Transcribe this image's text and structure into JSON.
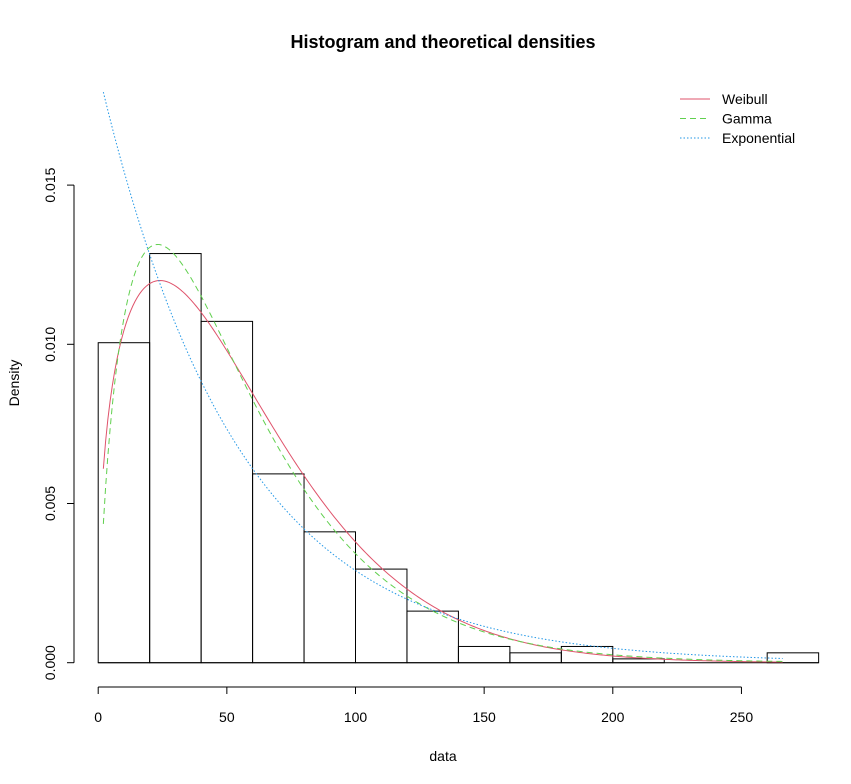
{
  "chart_data": {
    "type": "histogram",
    "title": "Histogram and theoretical densities",
    "xlabel": "data",
    "ylabel": "Density",
    "xlim": [
      0,
      275
    ],
    "ylim": [
      0,
      0.018
    ],
    "x_ticks": [
      {
        "value": 0,
        "label": "0"
      },
      {
        "value": 50,
        "label": "50"
      },
      {
        "value": 100,
        "label": "100"
      },
      {
        "value": 150,
        "label": "150"
      },
      {
        "value": 200,
        "label": "200"
      },
      {
        "value": 250,
        "label": "250"
      }
    ],
    "y_ticks": [
      {
        "value": 0,
        "label": "0.000"
      },
      {
        "value": 0.005,
        "label": "0.005"
      },
      {
        "value": 0.01,
        "label": "0.010"
      },
      {
        "value": 0.015,
        "label": "0.015"
      }
    ],
    "bins": [
      {
        "x0": 0,
        "x1": 20,
        "density": 0.01005
      },
      {
        "x0": 20,
        "x1": 40,
        "density": 0.01285
      },
      {
        "x0": 40,
        "x1": 60,
        "density": 0.01072
      },
      {
        "x0": 60,
        "x1": 80,
        "density": 0.00593
      },
      {
        "x0": 80,
        "x1": 100,
        "density": 0.00411
      },
      {
        "x0": 100,
        "x1": 120,
        "density": 0.00294
      },
      {
        "x0": 120,
        "x1": 140,
        "density": 0.00162
      },
      {
        "x0": 140,
        "x1": 160,
        "density": 0.00051
      },
      {
        "x0": 160,
        "x1": 180,
        "density": 0.00031
      },
      {
        "x0": 180,
        "x1": 200,
        "density": 0.00051
      },
      {
        "x0": 200,
        "x1": 220,
        "density": 0.00012
      },
      {
        "x0": 220,
        "x1": 240,
        "density": 0
      },
      {
        "x0": 240,
        "x1": 260,
        "density": 0
      },
      {
        "x0": 260,
        "x1": 280,
        "density": 0.00031
      }
    ],
    "curve_domain": [
      2,
      266
    ],
    "series": [
      {
        "name": "Weibull",
        "dist": "weibull",
        "shape": 1.38,
        "scale": 61.2,
        "color": "#DF536B",
        "dash": "none"
      },
      {
        "name": "Gamma",
        "dist": "gamma",
        "shape": 1.72,
        "rate": 0.0312,
        "color": "#61D04F",
        "dash": "6,4"
      },
      {
        "name": "Exponential",
        "dist": "exponential",
        "rate": 0.0186,
        "color": "#2297E6",
        "dash": "1.5,2"
      }
    ],
    "legend_position": "top-right",
    "grid": false
  }
}
